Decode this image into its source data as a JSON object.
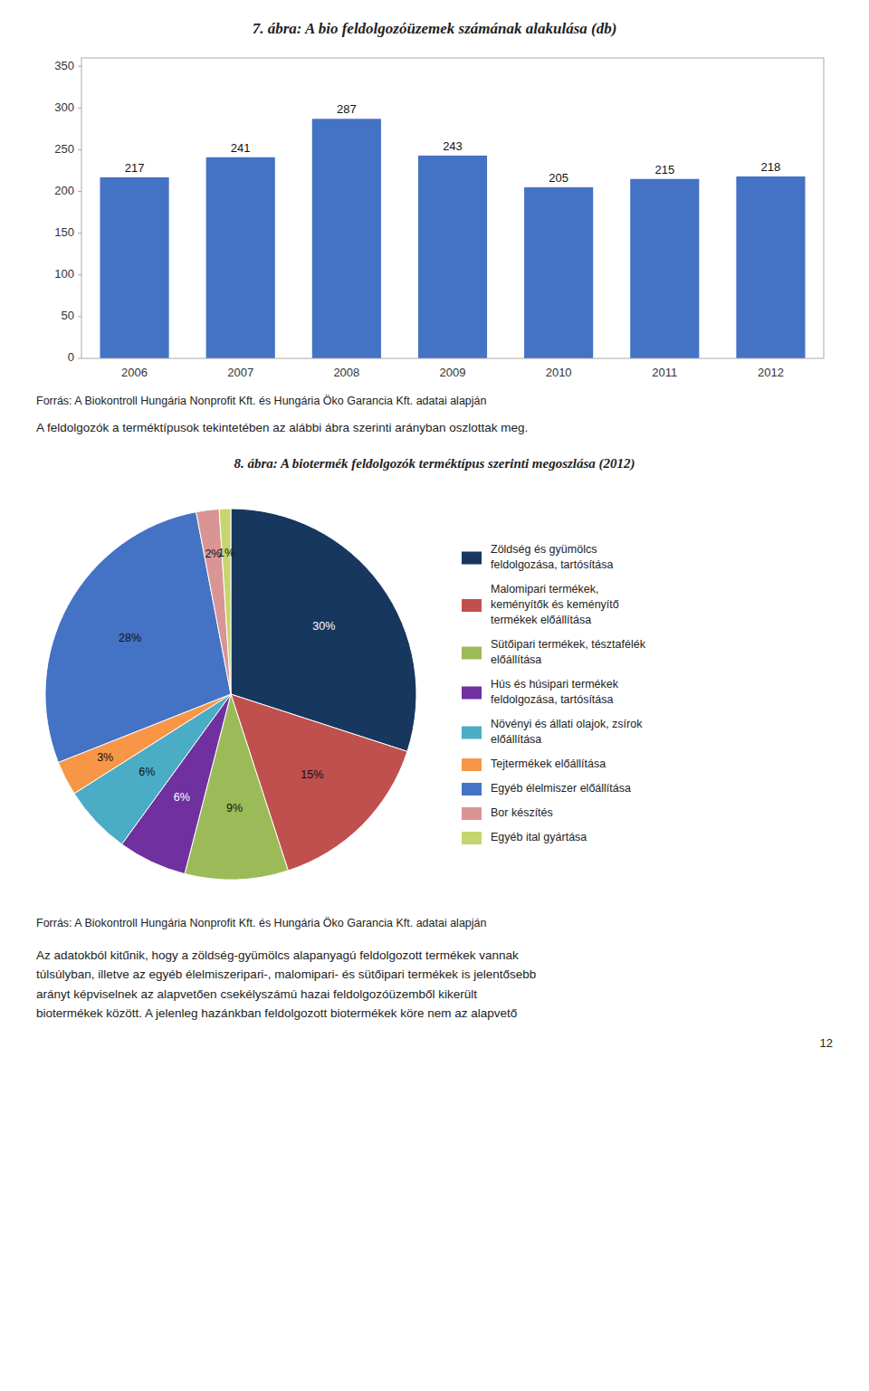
{
  "chart_data": [
    {
      "type": "bar",
      "title": "7. ábra: A bio feldolgozóüzemek számának alakulása (db)",
      "categories": [
        "2006",
        "2007",
        "2008",
        "2009",
        "2010",
        "2011",
        "2012"
      ],
      "values": [
        217,
        241,
        287,
        243,
        205,
        215,
        218
      ],
      "color": "#4472C4",
      "ylim": [
        0,
        360
      ],
      "yticks": [
        0,
        50,
        100,
        150,
        200,
        250,
        300,
        350
      ],
      "grid": false,
      "data_labels": true,
      "annotations": [
        "Forrás: A Biokontroll Hungária Nonprofit Kft. és Hungária Öko Garancia Kft. adatai alapján",
        "A feldolgozók a terméktípusok tekintetében az alábbi ábra szerinti arányban oszlottak meg."
      ]
    },
    {
      "type": "pie",
      "title": "8. ábra: A biotermék feldolgozók terméktípus szerinti megoszlása (2012)",
      "categories": [
        "Zöldség és gyümölcs\nfeldolgozása, tartósítása",
        "Malomipari termékek,\nkeményítők és keményítő\ntermékek előállítása",
        "Sütőipari termékek, tésztafélék\nelőállítása",
        "Hús és húsipari termékek\nfeldolgozása, tartósítása",
        "Növényi és állati olajok, zsírok\nelőállítása",
        "Tejtermékek előállítása",
        "Egyéb élelmiszer előállítása",
        "Bor készítés",
        "Egyéb ital gyártása"
      ],
      "values": [
        30,
        15,
        9,
        6,
        6,
        3,
        28,
        2,
        1
      ],
      "value_labels": [
        "30%",
        "15%",
        "9%",
        "6%",
        "6%",
        "3%",
        "28%",
        "2%",
        "1%"
      ],
      "colors": [
        "#17375E",
        "#C0504D",
        "#9BBB59",
        "#7030A0",
        "#4BACC6",
        "#F79646",
        "#4472C4",
        "#D99594",
        "#C6D56F"
      ],
      "data_labels": true,
      "legend": "right",
      "annotations": [
        "Forrás: A Biokontroll Hungária Nonprofit Kft. és Hungária Öko Garancia Kft. adatai alapján",
        "Az adatokból kitűnik, hogy a zöldség-gyümölcs alapanyagú feldolgozott termékek vannak\ntúlsúlyban, illetve az egyéb élelmiszeripari-, malomipari- és sütőipari termékek is jelentősebb\narányt képviselnek az alapvetően csekélyszámú hazai feldolgozóüzemből kikerült\nbiotermékek között. A jelenleg hazánkban feldolgozott biotermékek köre nem az alapvető",
        "12"
      ]
    }
  ]
}
